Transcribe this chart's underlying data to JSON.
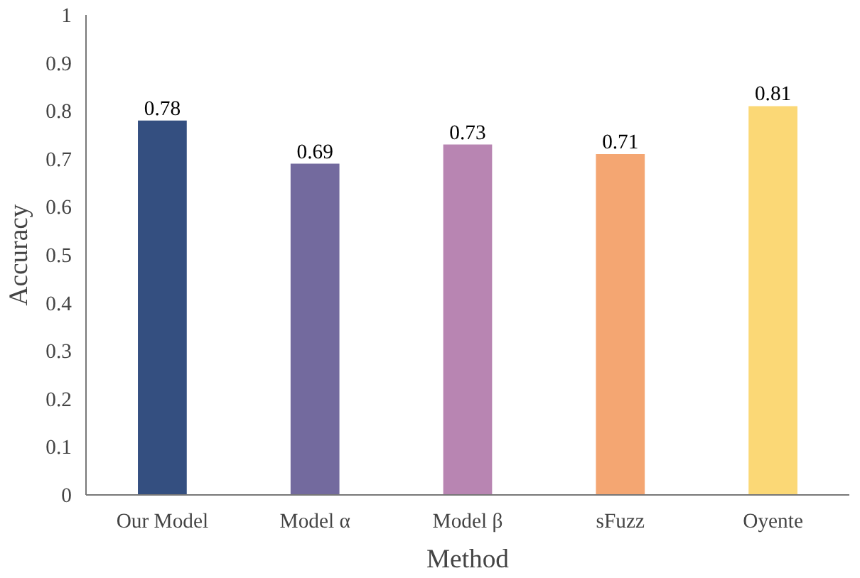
{
  "chart_data": {
    "type": "bar",
    "categories": [
      "Our Model",
      "Model α",
      "Model β",
      "sFuzz",
      "Oyente"
    ],
    "values": [
      0.78,
      0.69,
      0.73,
      0.71,
      0.81
    ],
    "colors": [
      "#344f80",
      "#736a9e",
      "#b885b2",
      "#f4a672",
      "#fbd876"
    ],
    "xlabel": "Method",
    "ylabel": "Accuracy",
    "ylim": [
      0,
      1
    ],
    "yticks": [
      0,
      0.1,
      0.2,
      0.3,
      0.4,
      0.5,
      0.6,
      0.7,
      0.8,
      0.9,
      1
    ],
    "data_labels": true,
    "grid": false
  }
}
